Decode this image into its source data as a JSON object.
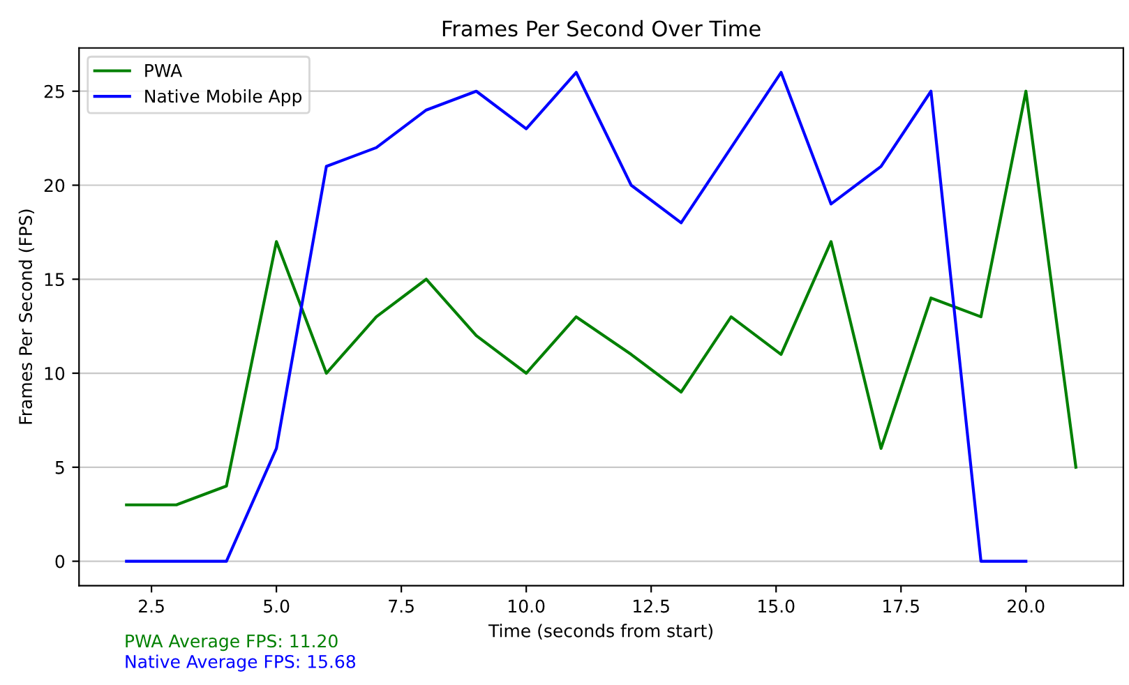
{
  "chart_data": {
    "type": "line",
    "title": "Frames Per Second Over Time",
    "xlabel": "Time (seconds from start)",
    "ylabel": "Frames Per Second (FPS)",
    "series": [
      {
        "name": "PWA",
        "color": "#008000",
        "x": [
          2.0,
          3.0,
          4.0,
          5.0,
          6.0,
          7.0,
          8.0,
          9.0,
          10.0,
          11.0,
          12.1,
          13.1,
          14.1,
          15.1,
          16.1,
          17.1,
          18.1,
          19.1,
          20.0,
          21.0
        ],
        "values": [
          3,
          3,
          4,
          17,
          10,
          13,
          15,
          12,
          10,
          13,
          11,
          9,
          13,
          11,
          17,
          6,
          14,
          13,
          25,
          5
        ]
      },
      {
        "name": "Native Mobile App",
        "color": "#0000ff",
        "x": [
          2.0,
          3.0,
          4.0,
          5.0,
          6.0,
          7.0,
          8.0,
          9.0,
          10.0,
          11.0,
          12.1,
          13.1,
          14.1,
          15.1,
          16.1,
          17.1,
          18.1,
          19.1,
          20.0
        ],
        "values": [
          0,
          0,
          0,
          6,
          21,
          22,
          24,
          25,
          23,
          26,
          20,
          18,
          22,
          26,
          19,
          21,
          25,
          0,
          0
        ]
      }
    ],
    "xlim": [
      1.05,
      21.95
    ],
    "ylim": [
      -1.3,
      27.3
    ],
    "xticks": [
      2.5,
      {
        "value": 5,
        "label": "5.0"
      },
      7.5,
      {
        "value": 10,
        "label": "10.0"
      },
      12.5,
      {
        "value": 15,
        "label": "15.0"
      },
      17.5,
      {
        "value": 20,
        "label": "20.0"
      }
    ],
    "yticks": [
      0,
      5,
      10,
      15,
      20,
      25
    ],
    "grid": "y",
    "legend": "top left",
    "marker": "none",
    "line_style": "solid",
    "annotations": [
      "PWA Average FPS: 11.20",
      "Native Average FPS: 15.68"
    ]
  }
}
